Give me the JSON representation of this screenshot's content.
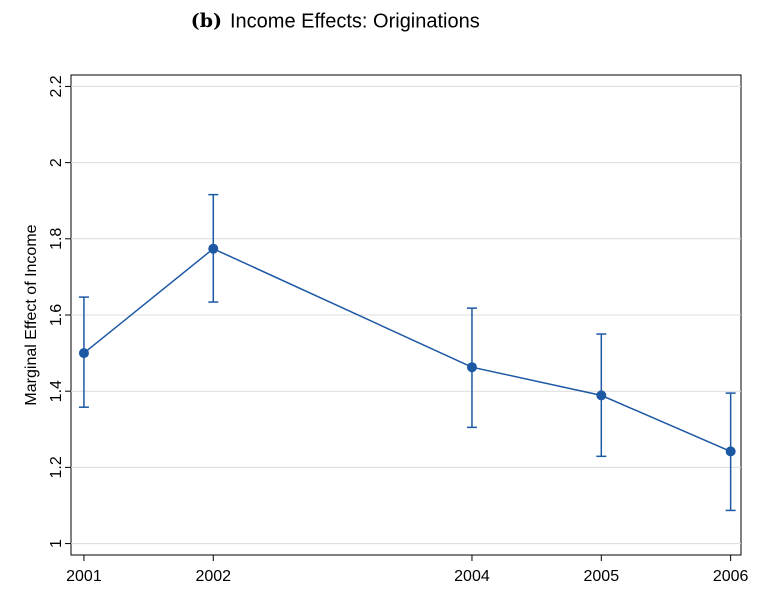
{
  "chart_data": {
    "type": "line",
    "panel_label": "(b)",
    "title": "Income Effects: Originations",
    "y_label": "Marginal Effect of Income",
    "x": [
      2001,
      2002,
      2004,
      2005,
      2006
    ],
    "series": [
      {
        "color": "#1c58a4",
        "values": [
          1.5,
          1.774,
          1.463,
          1.389,
          1.242
        ],
        "upper": [
          1.647,
          1.916,
          1.618,
          1.55,
          1.395
        ],
        "lower": [
          1.358,
          1.634,
          1.305,
          1.229,
          1.087
        ]
      }
    ],
    "xlim": [
      2000.9,
      2006.08
    ],
    "xticks": [
      2001,
      2002,
      2004,
      2005,
      2006
    ],
    "ylim": [
      0.97,
      2.23
    ],
    "yticks": [
      1,
      1.2,
      1.4,
      1.6,
      1.8,
      2,
      2.2
    ],
    "grid": true
  }
}
